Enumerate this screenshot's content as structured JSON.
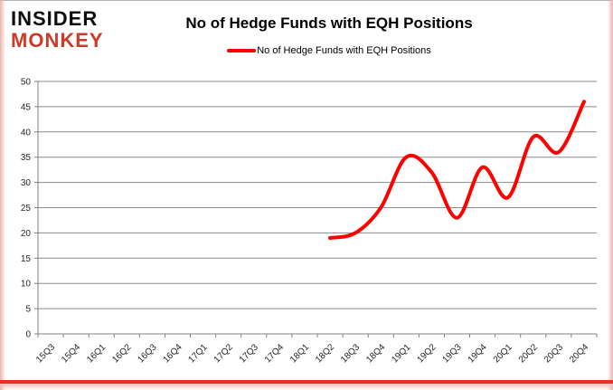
{
  "brand": {
    "line1": "INSIDER",
    "line2": "MONKEY"
  },
  "header": {
    "title": "No of Hedge Funds with EQH Positions"
  },
  "legend": {
    "label": "No of Hedge Funds with EQH Positions",
    "color": "#ff0000"
  },
  "colors": {
    "series_red": "#ff0000",
    "logo_red": "#cd3b28",
    "grid": "#8c8c8c",
    "axis": "#808080",
    "axis_text": "#262626",
    "bottom_bar_red": "#e8321f",
    "frame_pink": "#eab3ac"
  },
  "chart_data": {
    "type": "line",
    "title": "No of Hedge Funds with EQH Positions",
    "categories": [
      "15Q3",
      "15Q4",
      "16Q1",
      "16Q2",
      "16Q3",
      "16Q4",
      "17Q1",
      "17Q2",
      "17Q3",
      "17Q4",
      "18Q1",
      "18Q2",
      "18Q3",
      "18Q4",
      "19Q1",
      "19Q2",
      "19Q3",
      "19Q4",
      "20Q1",
      "20Q2",
      "20Q3",
      "20Q4"
    ],
    "series": [
      {
        "name": "No of Hedge Funds with EQH Positions",
        "color": "#ff0000",
        "values": [
          null,
          null,
          null,
          null,
          null,
          null,
          null,
          null,
          null,
          null,
          null,
          19,
          20,
          25,
          35,
          32,
          23,
          33,
          27,
          39,
          36,
          46
        ]
      }
    ],
    "xlabel": "",
    "ylabel": "",
    "ylim": [
      0,
      50
    ],
    "ytick_step": 5,
    "grid": true,
    "legend_position": "top",
    "line_smoothing": true
  }
}
